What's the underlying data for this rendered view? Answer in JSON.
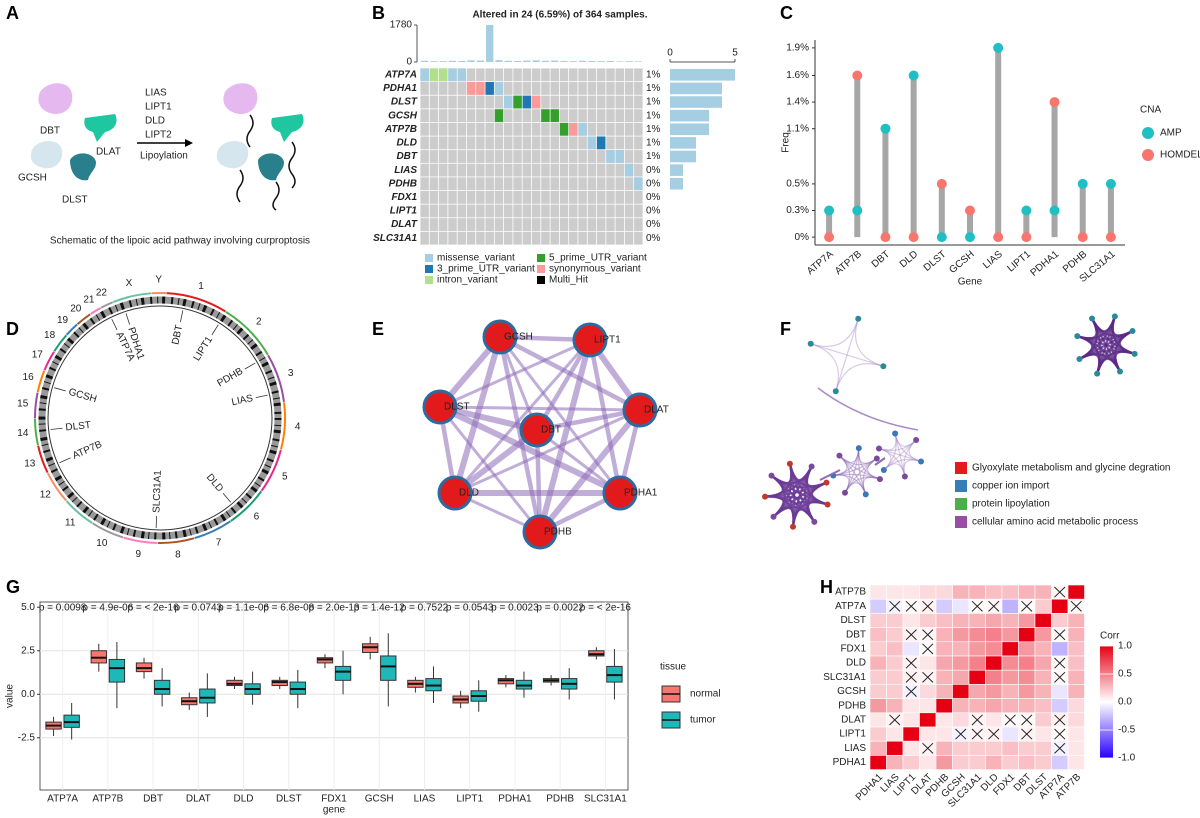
{
  "panel_labels": [
    "A",
    "B",
    "C",
    "D",
    "E",
    "F",
    "G",
    "H"
  ],
  "schematic": {
    "proteins": [
      "DBT",
      "DLAT",
      "GCSH",
      "DLST"
    ],
    "enzymes": [
      "LIAS",
      "LIPT1",
      "DLD",
      "LIPT2"
    ],
    "process": "Lipoylation",
    "caption": "Schematic of the lipoic acid pathway involving curproptosis"
  },
  "circos": {
    "chromosomes": [
      "1",
      "2",
      "3",
      "4",
      "5",
      "6",
      "7",
      "8",
      "9",
      "10",
      "11",
      "12",
      "13",
      "14",
      "15",
      "16",
      "17",
      "18",
      "19",
      "20",
      "21",
      "22",
      "X",
      "Y"
    ],
    "genes": [
      "DBT",
      "LIPT1",
      "PDHB",
      "LIAS",
      "DLD",
      "SLC31A1",
      "ATP7B",
      "DLST",
      "GCSH",
      "ATP7A",
      "PDHA1"
    ]
  },
  "ppi_network": {
    "nodes": [
      "GCSH",
      "LIPT1",
      "DLST",
      "DBT",
      "DLAT",
      "DLD",
      "PDHA1",
      "PDHB"
    ]
  },
  "enrichment_legend": [
    {
      "label": "Glyoxylate metabolism and glycine degration",
      "color": "#e41a1c"
    },
    {
      "label": "copper ion import",
      "color": "#377eb8"
    },
    {
      "label": "protein lipoylation",
      "color": "#4daf4a"
    },
    {
      "label": "cellular amino acid metabolic process",
      "color": "#984ea3"
    }
  ],
  "chart_data": [
    {
      "type": "oncoplot",
      "title": "Altered in 24 (6.59%) of 364 samples.",
      "genes": [
        "ATP7A",
        "PDHA1",
        "DLST",
        "GCSH",
        "ATP7B",
        "DLD",
        "DBT",
        "LIAS",
        "PDHB",
        "FDX1",
        "LIPT1",
        "DLAT",
        "SLC31A1"
      ],
      "percent_labels": [
        "1%",
        "1%",
        "1%",
        "1%",
        "1%",
        "1%",
        "1%",
        "0%",
        "0%",
        "0%",
        "0%",
        "0%",
        "0%"
      ],
      "variant_types": [
        {
          "name": "missense_variant",
          "color": "#a6cee3"
        },
        {
          "name": "5_prime_UTR_variant",
          "color": "#33a02c"
        },
        {
          "name": "3_prime_UTR_variant",
          "color": "#1f78b4"
        },
        {
          "name": "synonymous_variant",
          "color": "#fb9a99"
        },
        {
          "name": "intron_variant",
          "color": "#b2df8a"
        },
        {
          "name": "Multi_Hit",
          "color": "#000000"
        }
      ],
      "mutations": [
        {
          "gene": 0,
          "sample": 0,
          "type": 0
        },
        {
          "gene": 0,
          "sample": 1,
          "type": 4
        },
        {
          "gene": 0,
          "sample": 2,
          "type": 4
        },
        {
          "gene": 0,
          "sample": 3,
          "type": 0
        },
        {
          "gene": 0,
          "sample": 4,
          "type": 0
        },
        {
          "gene": 1,
          "sample": 5,
          "type": 3
        },
        {
          "gene": 1,
          "sample": 6,
          "type": 3
        },
        {
          "gene": 1,
          "sample": 7,
          "type": 2
        },
        {
          "gene": 1,
          "sample": 8,
          "type": 0
        },
        {
          "gene": 2,
          "sample": 9,
          "type": 0
        },
        {
          "gene": 2,
          "sample": 10,
          "type": 1
        },
        {
          "gene": 2,
          "sample": 11,
          "type": 2
        },
        {
          "gene": 2,
          "sample": 12,
          "type": 3
        },
        {
          "gene": 3,
          "sample": 8,
          "type": 1
        },
        {
          "gene": 3,
          "sample": 13,
          "type": 1
        },
        {
          "gene": 3,
          "sample": 14,
          "type": 1
        },
        {
          "gene": 4,
          "sample": 15,
          "type": 1
        },
        {
          "gene": 4,
          "sample": 16,
          "type": 3
        },
        {
          "gene": 4,
          "sample": 17,
          "type": 0
        },
        {
          "gene": 5,
          "sample": 18,
          "type": 0
        },
        {
          "gene": 5,
          "sample": 19,
          "type": 2
        },
        {
          "gene": 6,
          "sample": 20,
          "type": 0
        },
        {
          "gene": 6,
          "sample": 21,
          "type": 0
        },
        {
          "gene": 7,
          "sample": 22,
          "type": 0
        },
        {
          "gene": 8,
          "sample": 23,
          "type": 0
        }
      ],
      "sample_totals": [
        60,
        40,
        40,
        60,
        50,
        80,
        70,
        1780,
        90,
        60,
        50,
        70,
        80,
        60,
        70,
        50,
        40,
        60,
        50,
        40,
        50,
        30,
        40,
        30
      ],
      "top_ylim": [
        0,
        1780
      ],
      "top_yticks": [
        0,
        1780
      ],
      "gene_counts": [
        5,
        4,
        4,
        3,
        3,
        2,
        2,
        1,
        1,
        0,
        0,
        0,
        0
      ],
      "side_xlim": [
        0,
        5
      ],
      "side_xticks": [
        0,
        5
      ]
    },
    {
      "type": "lollipop",
      "xlabel": "Gene",
      "ylabel": "Freq",
      "legend_title": "CNA",
      "categories": [
        "ATP7A",
        "ATP7B",
        "DBT",
        "DLD",
        "DLST",
        "GCSH",
        "LIAS",
        "LIPT1",
        "PDHA1",
        "PDHB",
        "SLC31A1"
      ],
      "series": [
        {
          "name": "AMP",
          "color": "#1fbfc4",
          "values": [
            0.27,
            0.27,
            1.1,
            1.64,
            0,
            0,
            1.92,
            0.27,
            0.27,
            0.54,
            0.54
          ]
        },
        {
          "name": "HOMDEL",
          "color": "#f8766d",
          "values": [
            0,
            1.64,
            0,
            0,
            0.54,
            0.27,
            0,
            0,
            1.37,
            0,
            0
          ]
        }
      ],
      "ylim": [
        -0.08,
        2.0
      ],
      "yticks": [
        {
          "value": 0,
          "label": "0%"
        },
        {
          "value": 0.27,
          "label": "0.3%"
        },
        {
          "value": 0.54,
          "label": "0.5%"
        },
        {
          "value": 1.1,
          "label": "1.1%"
        },
        {
          "value": 1.37,
          "label": "1.4%"
        },
        {
          "value": 1.64,
          "label": "1.6%"
        },
        {
          "value": 1.92,
          "label": "1.9%"
        }
      ]
    },
    {
      "type": "boxplot",
      "xlabel": "gene",
      "ylabel": "value",
      "legend_title": "tissue",
      "grid": true,
      "categories": [
        "ATP7A",
        "ATP7B",
        "DBT",
        "DLAT",
        "DLD",
        "DLST",
        "FDX1",
        "GCSH",
        "LIAS",
        "LIPT1",
        "PDHA1",
        "PDHB",
        "SLC31A1"
      ],
      "annotations": [
        "p = 0.0098",
        "p = 4.9e-06",
        "p = < 2e-16",
        "p = 0.0743",
        "p = 1.1e-06",
        "p = 6.8e-08",
        "p = 2.0e-13",
        "p = 1.4e-12",
        "p = 0.7522",
        "p = 0.0543",
        "p = 0.0023",
        "p = 0.0022",
        "p = < 2e-16"
      ],
      "ylim": [
        -5.5,
        5.3
      ],
      "yticks": [
        -2.5,
        {
          "value": 0,
          "label": "0.0"
        },
        2.5,
        {
          "value": 5,
          "label": "5.0"
        }
      ],
      "series": [
        {
          "name": "normal",
          "color": "#f8766d",
          "whisker_low": [
            -2.4,
            1.3,
            0.9,
            -0.9,
            0.3,
            0.3,
            1.5,
            2.0,
            0.1,
            -0.8,
            0.4,
            0.5,
            2.0
          ],
          "q1": [
            -2.0,
            1.8,
            1.3,
            -0.6,
            0.5,
            0.5,
            1.8,
            2.4,
            0.4,
            -0.5,
            0.6,
            0.7,
            2.2
          ],
          "median": [
            -1.8,
            2.1,
            1.5,
            -0.4,
            0.6,
            0.7,
            2.0,
            2.7,
            0.6,
            -0.3,
            0.8,
            0.8,
            2.3
          ],
          "q3": [
            -1.6,
            2.5,
            1.8,
            -0.2,
            0.8,
            0.8,
            2.1,
            2.9,
            0.8,
            -0.1,
            0.9,
            0.9,
            2.5
          ],
          "whisker_high": [
            -1.3,
            2.9,
            2.1,
            0.1,
            1.0,
            1.0,
            2.3,
            3.3,
            1.0,
            0.2,
            1.1,
            1.1,
            2.7
          ]
        },
        {
          "name": "tumor",
          "color": "#1fb8b8",
          "whisker_low": [
            -2.6,
            -0.8,
            -0.7,
            -1.3,
            -0.6,
            -0.8,
            0.0,
            -0.7,
            -0.5,
            -1.0,
            -0.2,
            -0.3,
            -0.3
          ],
          "q1": [
            -1.9,
            0.7,
            0.0,
            -0.5,
            0.0,
            0.0,
            0.8,
            0.8,
            0.2,
            -0.4,
            0.3,
            0.3,
            0.7
          ],
          "median": [
            -1.6,
            1.5,
            0.3,
            -0.2,
            0.3,
            0.3,
            1.3,
            1.6,
            0.5,
            -0.1,
            0.5,
            0.6,
            1.1
          ],
          "q3": [
            -1.2,
            2.0,
            0.8,
            0.3,
            0.6,
            0.7,
            1.6,
            2.2,
            0.9,
            0.2,
            0.8,
            0.9,
            1.6
          ],
          "whisker_high": [
            -0.5,
            3.0,
            1.5,
            1.2,
            1.3,
            1.4,
            2.5,
            3.5,
            1.6,
            0.8,
            1.3,
            1.5,
            2.6
          ]
        }
      ]
    },
    {
      "type": "heatmap",
      "legend_title": "Corr",
      "rows": [
        "ATP7B",
        "ATP7A",
        "DLST",
        "DBT",
        "FDX1",
        "DLD",
        "SLC31A1",
        "GCSH",
        "PDHB",
        "DLAT",
        "LIPT1",
        "LIAS",
        "PDHA1"
      ],
      "columns": [
        "PDHA1",
        "LIAS",
        "LIPT1",
        "DLAT",
        "PDHB",
        "GCSH",
        "SLC31A1",
        "DLD",
        "FDX1",
        "DBT",
        "DLST",
        "ATP7A",
        "ATP7B"
      ],
      "values": [
        [
          0.1,
          0.1,
          0.1,
          0.15,
          0.15,
          0.3,
          0.3,
          0.25,
          0.25,
          0.3,
          0.3,
          0.03,
          1
        ],
        [
          -0.2,
          -0.05,
          0.02,
          0.05,
          -0.2,
          -0.1,
          0.02,
          0.03,
          -0.3,
          0.02,
          0.2,
          1,
          0.03
        ],
        [
          0.2,
          0.2,
          0.1,
          0.2,
          0.25,
          0.3,
          0.3,
          0.35,
          0.3,
          0.4,
          1,
          0.2,
          0.3
        ],
        [
          0.25,
          0.2,
          0.05,
          0.03,
          0.3,
          0.4,
          0.45,
          0.5,
          0.4,
          1,
          0.4,
          0.02,
          0.3
        ],
        [
          0.2,
          0.25,
          -0.1,
          0.02,
          0.3,
          0.3,
          0.4,
          0.45,
          1,
          0.4,
          0.3,
          -0.3,
          0.25
        ],
        [
          0.3,
          0.2,
          0.05,
          0.1,
          0.35,
          0.4,
          0.5,
          1,
          0.45,
          0.5,
          0.35,
          0.03,
          0.25
        ],
        [
          0.2,
          0.2,
          0.05,
          0.05,
          0.3,
          0.35,
          1,
          0.5,
          0.4,
          0.45,
          0.3,
          0.02,
          0.3
        ],
        [
          0.2,
          0.2,
          -0.05,
          0.15,
          0.3,
          1,
          0.35,
          0.4,
          0.3,
          0.4,
          0.3,
          -0.1,
          0.3
        ],
        [
          0.4,
          0.3,
          0.1,
          0.1,
          1,
          0.3,
          0.3,
          0.35,
          0.3,
          0.3,
          0.25,
          -0.2,
          0.15
        ],
        [
          0.1,
          0.05,
          0.1,
          1,
          0.1,
          0.15,
          0.05,
          0.1,
          0.02,
          0.03,
          0.2,
          0.05,
          0.15
        ],
        [
          0.2,
          0.1,
          1,
          0.1,
          0.1,
          -0.05,
          0.05,
          0.05,
          -0.1,
          0.05,
          0.1,
          0.02,
          0.1
        ],
        [
          0.3,
          1,
          0.1,
          0.05,
          0.3,
          0.2,
          0.2,
          0.2,
          0.25,
          0.2,
          0.2,
          -0.05,
          0.1
        ],
        [
          1,
          0.3,
          0.2,
          0.1,
          0.4,
          0.2,
          0.2,
          0.3,
          0.2,
          0.25,
          0.2,
          -0.2,
          0.1
        ]
      ],
      "crossed": [
        [
          11,
          3
        ],
        [
          9,
          1
        ],
        [
          11,
          11
        ],
        [
          1,
          1
        ],
        [
          10,
          5
        ],
        [
          7,
          2
        ],
        [
          10,
          6
        ],
        [
          6,
          2
        ],
        [
          10,
          7
        ],
        [
          5,
          2
        ],
        [
          10,
          9
        ],
        [
          3,
          2
        ],
        [
          10,
          11
        ],
        [
          1,
          2
        ],
        [
          9,
          6
        ],
        [
          6,
          3
        ],
        [
          9,
          8
        ],
        [
          4,
          3
        ],
        [
          9,
          9
        ],
        [
          3,
          3
        ],
        [
          9,
          11
        ],
        [
          1,
          3
        ],
        [
          6,
          11
        ],
        [
          1,
          6
        ],
        [
          5,
          11
        ],
        [
          1,
          7
        ],
        [
          3,
          11
        ],
        [
          1,
          9
        ],
        [
          1,
          12
        ],
        [
          0,
          11
        ]
      ],
      "clim": [
        -1,
        1
      ],
      "cticks": [
        {
          "value": 1,
          "label": "1.0"
        },
        0.5,
        {
          "value": 0,
          "label": "0.0"
        },
        -0.5,
        {
          "value": -1,
          "label": "-1.0"
        }
      ]
    }
  ]
}
